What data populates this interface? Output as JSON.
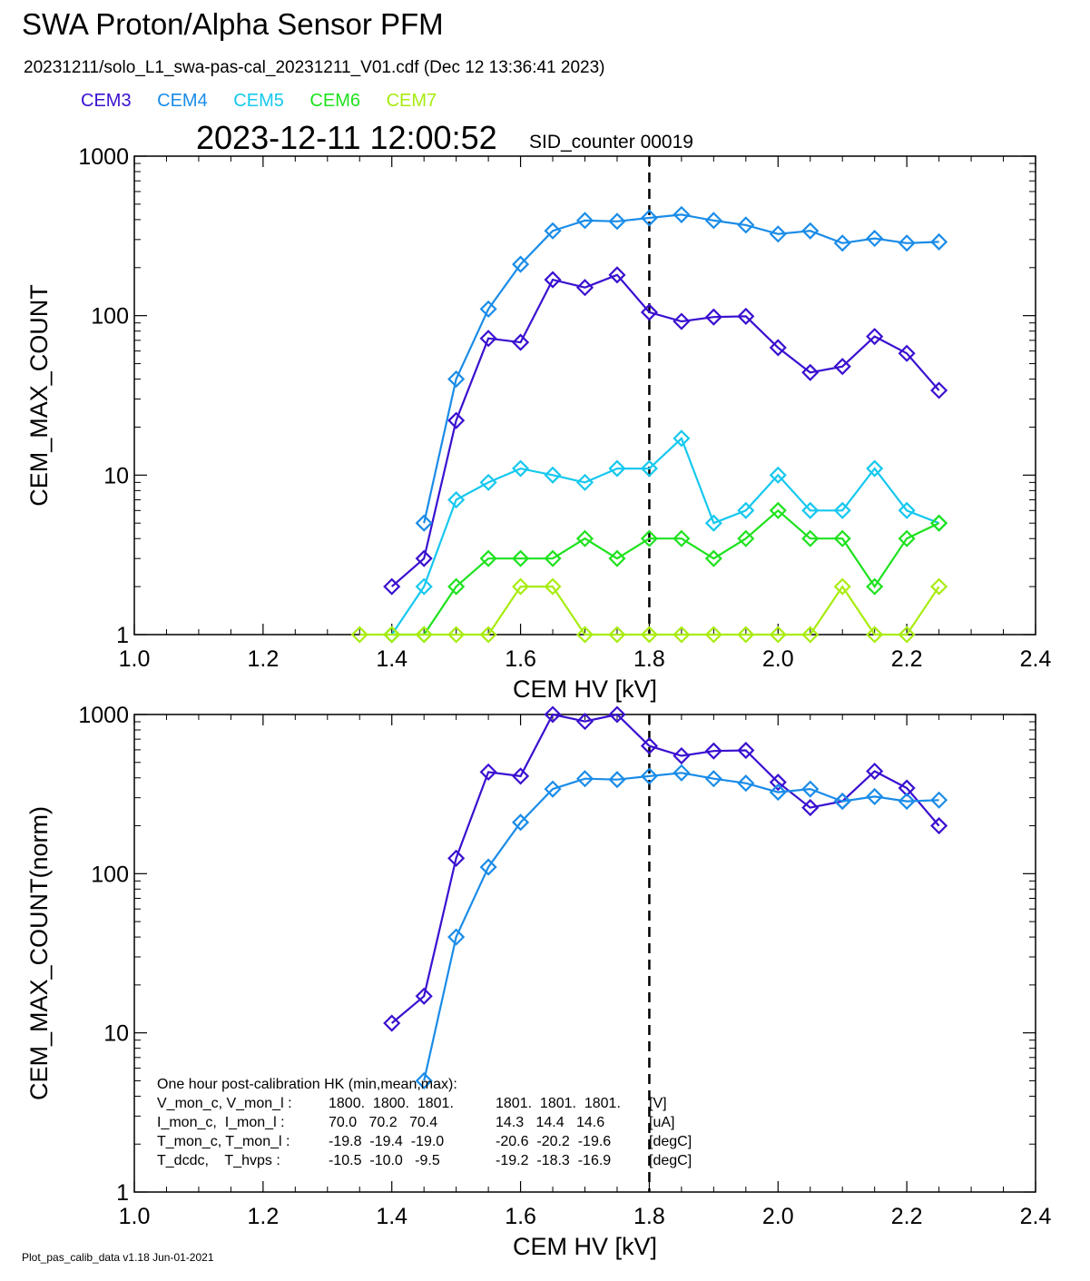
{
  "header": {
    "title": "SWA Proton/Alpha Sensor PFM",
    "file_line": "20231211/solo_L1_swa-pas-cal_20231211_V01.cdf  (Dec 12 13:36:41 2023)",
    "timestamp": "2023-12-11 12:00:52",
    "sid": "SID_counter 00019"
  },
  "legend": [
    {
      "label": "CEM3",
      "color": "#3a10d0"
    },
    {
      "label": "CEM4",
      "color": "#1a8ce8"
    },
    {
      "label": "CEM5",
      "color": "#16c8ee"
    },
    {
      "label": "CEM6",
      "color": "#1ee21e"
    },
    {
      "label": "CEM7",
      "color": "#a8ec10"
    }
  ],
  "footer": "Plot_pas_calib_data v1.18 Jun-01-2021",
  "chart_data": [
    {
      "type": "line",
      "ylabel": "CEM_MAX_COUNT",
      "xlabel": "CEM HV [kV]",
      "xlim": [
        1.0,
        2.4
      ],
      "ylim": [
        1,
        1000
      ],
      "yscale": "log",
      "xticks": [
        "1.0",
        "1.2",
        "1.4",
        "1.6",
        "1.8",
        "2.0",
        "2.2",
        "2.4"
      ],
      "yticks": [
        "1",
        "10",
        "100",
        "1000"
      ],
      "vline_x": 1.8,
      "series": [
        {
          "name": "CEM3",
          "color": "#3a10d0",
          "x": [
            1.4,
            1.45,
            1.5,
            1.55,
            1.6,
            1.65,
            1.7,
            1.75,
            1.8,
            1.85,
            1.9,
            1.95,
            2.0,
            2.05,
            2.1,
            2.15,
            2.2,
            2.25
          ],
          "y": [
            2,
            3,
            22,
            72,
            68,
            168,
            150,
            180,
            105,
            92,
            98,
            99,
            63,
            44,
            48,
            74,
            58,
            34
          ]
        },
        {
          "name": "CEM4",
          "color": "#1a8ce8",
          "x": [
            1.45,
            1.5,
            1.55,
            1.6,
            1.65,
            1.7,
            1.75,
            1.8,
            1.85,
            1.9,
            1.95,
            2.0,
            2.05,
            2.1,
            2.15,
            2.2,
            2.25
          ],
          "y": [
            5,
            40,
            110,
            210,
            340,
            395,
            390,
            410,
            430,
            395,
            370,
            325,
            340,
            285,
            305,
            285,
            290
          ]
        },
        {
          "name": "CEM5",
          "color": "#16c8ee",
          "x": [
            1.4,
            1.45,
            1.5,
            1.55,
            1.6,
            1.65,
            1.7,
            1.75,
            1.8,
            1.85,
            1.9,
            1.95,
            2.0,
            2.05,
            2.1,
            2.15,
            2.2,
            2.25
          ],
          "y": [
            1,
            2,
            7,
            9,
            11,
            10,
            9,
            11,
            11,
            17,
            5,
            6,
            10,
            6,
            6,
            11,
            6,
            5
          ]
        },
        {
          "name": "CEM6",
          "color": "#1ee21e",
          "x": [
            1.4,
            1.45,
            1.5,
            1.55,
            1.6,
            1.65,
            1.7,
            1.75,
            1.8,
            1.85,
            1.9,
            1.95,
            2.0,
            2.05,
            2.1,
            2.15,
            2.2,
            2.25
          ],
          "y": [
            1,
            1,
            2,
            3,
            3,
            3,
            4,
            3,
            4,
            4,
            3,
            4,
            6,
            4,
            4,
            2,
            4,
            5
          ]
        },
        {
          "name": "CEM7",
          "color": "#a8ec10",
          "x": [
            1.35,
            1.4,
            1.45,
            1.5,
            1.55,
            1.6,
            1.65,
            1.7,
            1.75,
            1.8,
            1.85,
            1.9,
            1.95,
            2.0,
            2.05,
            2.1,
            2.15,
            2.2,
            2.25
          ],
          "y": [
            1,
            1,
            1,
            1,
            1,
            2,
            2,
            1,
            1,
            1,
            1,
            1,
            1,
            1,
            1,
            2,
            1,
            1,
            2
          ]
        }
      ]
    },
    {
      "type": "line",
      "ylabel": "CEM_MAX_COUNT(norm)",
      "xlabel": "CEM HV [kV]",
      "xlim": [
        1.0,
        2.4
      ],
      "ylim": [
        1,
        1000
      ],
      "yscale": "log",
      "xticks": [
        "1.0",
        "1.2",
        "1.4",
        "1.6",
        "1.8",
        "2.0",
        "2.2",
        "2.4"
      ],
      "yticks": [
        "1",
        "10",
        "100",
        "1000"
      ],
      "vline_x": 1.8,
      "series": [
        {
          "name": "CEM3",
          "color": "#3a10d0",
          "x": [
            1.4,
            1.45,
            1.5,
            1.55,
            1.6,
            1.65,
            1.7,
            1.75,
            1.8,
            1.85,
            1.9,
            1.95,
            2.0,
            2.05,
            2.1,
            2.15,
            2.2,
            2.25
          ],
          "y": [
            11.5,
            17,
            125,
            435,
            410,
            1010,
            905,
            1070,
            635,
            550,
            590,
            595,
            375,
            260,
            285,
            440,
            345,
            200
          ]
        },
        {
          "name": "CEM4",
          "color": "#1a8ce8",
          "x": [
            1.45,
            1.5,
            1.55,
            1.6,
            1.65,
            1.7,
            1.75,
            1.8,
            1.85,
            1.9,
            1.95,
            2.0,
            2.05,
            2.1,
            2.15,
            2.2,
            2.25
          ],
          "y": [
            5,
            40,
            110,
            210,
            340,
            395,
            390,
            410,
            430,
            395,
            370,
            325,
            340,
            285,
            305,
            285,
            290
          ]
        }
      ],
      "annotation": {
        "heading": "One hour post-calibration HK (min,mean,max):",
        "rows": [
          [
            "V_mon_c, V_mon_l :",
            "1800.  1800.  1801.",
            "1801.  1801.  1801.",
            "[V]"
          ],
          [
            "I_mon_c,  I_mon_l :",
            "70.0   70.2   70.4",
            "14.3   14.4   14.6",
            "[uA]"
          ],
          [
            "T_mon_c, T_mon_l :",
            "-19.8  -19.4  -19.0",
            "-20.6  -20.2  -19.6",
            "[degC]"
          ],
          [
            "T_dcdc,    T_hvps :",
            "-10.5  -10.0   -9.5",
            "-19.2  -18.3  -16.9",
            "[degC]"
          ]
        ]
      }
    }
  ]
}
